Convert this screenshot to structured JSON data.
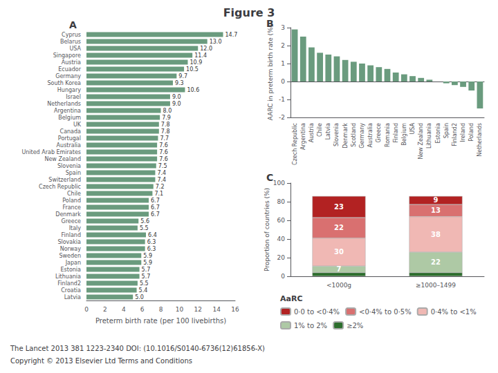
{
  "title": "Figure 3",
  "annotations": [
    "The Lancet 2013 381 1223-2340 DOI: (10.1016/S0140-6736(12)61856-X)",
    "Copyright © 2013 Elsevier Ltd Terms and Conditions"
  ],
  "chart_data": [
    {
      "type": "bar",
      "title": "A",
      "orientation": "horizontal",
      "categories": [
        "Cyprus",
        "Belarus",
        "USA",
        "Singapore",
        "Austria",
        "Ecuador",
        "Germany",
        "South Korea",
        "Hungary",
        "Israel",
        "Netherlands",
        "Argentina",
        "Belgium",
        "UK",
        "Canada",
        "Portugal",
        "Australia",
        "United Arab Emirates",
        "New Zealand",
        "Slovenia",
        "Spain",
        "Switzerland",
        "Czech Republic",
        "Chile",
        "Poland",
        "France",
        "Denmark",
        "Greece",
        "Italy",
        "Finland",
        "Slovakia",
        "Norway",
        "Sweden",
        "Japan",
        "Estonia",
        "Lithuania",
        "Finland2",
        "Croatia",
        "Latvia"
      ],
      "values": [
        14.7,
        13.0,
        12.0,
        11.4,
        10.9,
        10.5,
        9.7,
        9.3,
        10.6,
        9.0,
        9.0,
        8.0,
        7.9,
        7.8,
        7.8,
        7.7,
        7.6,
        7.6,
        7.6,
        7.5,
        7.4,
        7.4,
        7.2,
        7.1,
        6.7,
        6.7,
        6.7,
        5.6,
        5.5,
        6.4,
        6.3,
        6.3,
        5.9,
        5.9,
        5.7,
        5.7,
        5.5,
        5.4,
        5.0
      ],
      "value_labels": [
        "14.7",
        "13.0",
        "12.0",
        "11.4",
        "10.9",
        "10.5",
        "9.7",
        "9.3",
        "10.6",
        "9.0",
        "9.0",
        "8.0",
        "7.9",
        "7.8",
        "7.8",
        "7.7",
        "7.6",
        "7.6",
        "7.6",
        "7.5",
        "7.4",
        "7.4",
        "7.2",
        "7.1",
        "6.7",
        "6.7",
        "6.7",
        "5.6",
        "5.5",
        "6.4",
        "6.3",
        "6.3",
        "5.9",
        "5.9",
        "5.7",
        "5.7",
        "5.5",
        "5.4",
        "5.0"
      ],
      "data_labels": true,
      "color": "#6a9b7e",
      "xlabel": "Preterm birth rate (per 100 livebirths)",
      "xlim": [
        0,
        16
      ],
      "xticks": [
        0,
        2,
        4,
        6,
        8,
        10,
        12,
        14,
        16
      ],
      "grid": false
    },
    {
      "type": "bar",
      "title": "B",
      "categories": [
        "Czech Republic",
        "Argentina",
        "Austria",
        "Chile",
        "Latvia",
        "Slovenia",
        "Denmark",
        "Scotland",
        "Germany",
        "Australia",
        "Greece",
        "Romania",
        "Finland",
        "Belgium",
        "USA",
        "New Zealand",
        "Lithuania",
        "Estonia",
        "Spain",
        "Finland2",
        "Ireland",
        "Poland",
        "Netherlands"
      ],
      "values": [
        2.9,
        2.5,
        1.9,
        1.6,
        1.5,
        1.4,
        1.2,
        1.1,
        1.0,
        0.9,
        0.8,
        0.7,
        0.5,
        0.4,
        0.3,
        0.2,
        0.1,
        0.0,
        -0.1,
        -0.2,
        -0.3,
        -0.5,
        -1.5
      ],
      "color": "#6a9b7e",
      "ylabel": "AARC in preterm birth rate (%)",
      "ylim": [
        -2,
        3
      ],
      "yticks": [
        -2,
        -1,
        0,
        1,
        2,
        3
      ],
      "grid": false
    },
    {
      "type": "bar",
      "title": "C",
      "stacked": true,
      "categories": [
        "<1000g",
        "≥1000–1499"
      ],
      "series": [
        {
          "name": "≥2%",
          "color": "#2d6e2d",
          "values": [
            4,
            4
          ],
          "value_labels": [
            null,
            null
          ]
        },
        {
          "name": "1% to 2%",
          "color": "#aec9a5",
          "values": [
            7,
            22
          ],
          "value_labels": [
            "7",
            "22"
          ]
        },
        {
          "name": "0·4% to <1%",
          "color": "#f0b8b4",
          "values": [
            30,
            38
          ],
          "value_labels": [
            "30",
            "38"
          ]
        },
        {
          "name": "<0·4% to 0·5%",
          "color": "#d97070",
          "values": [
            22,
            13
          ],
          "value_labels": [
            "22",
            "13"
          ]
        },
        {
          "name": "0·0 to <0·4%",
          "color": "#b22222",
          "values": [
            23,
            9
          ],
          "value_labels": [
            "23",
            "9"
          ]
        }
      ],
      "data_labels": true,
      "ylabel": "Proportion of countries (%)",
      "ylim": [
        0,
        100
      ],
      "yticks": [
        0,
        20,
        40,
        60,
        80,
        100
      ],
      "legend": "bottom",
      "annotations": [
        "AaRC"
      ],
      "grid": false
    }
  ]
}
